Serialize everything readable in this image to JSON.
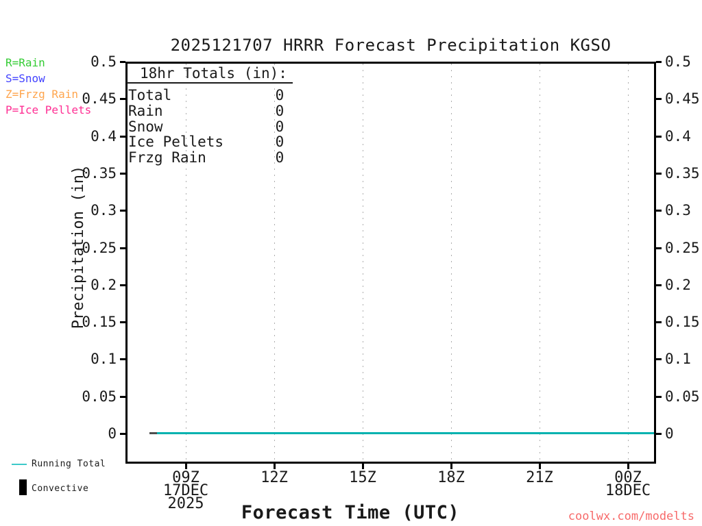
{
  "title": "2025121707 HRRR Forecast Precipitation KGSO",
  "precip_type_legend": {
    "items": [
      {
        "code": "R=Rain",
        "color": "#33cc33"
      },
      {
        "code": "S=Snow",
        "color": "#4343ff"
      },
      {
        "code": "Z=Frzg Rain",
        "color": "#ffa54d"
      },
      {
        "code": "P=Ice Pellets",
        "color": "#ff2e93"
      }
    ]
  },
  "totals_box": {
    "heading": "18hr Totals (in):",
    "rows": [
      {
        "label": "Total",
        "value": "0"
      },
      {
        "label": "Rain",
        "value": "0"
      },
      {
        "label": "Snow",
        "value": "0"
      },
      {
        "label": "Ice Pellets",
        "value": "0"
      },
      {
        "label": "Frzg Rain",
        "value": "0"
      }
    ]
  },
  "y_axis": {
    "label": "Precipitation (in)",
    "ticks": [
      "0.5",
      "0.45",
      "0.4",
      "0.35",
      "0.3",
      "0.25",
      "0.2",
      "0.15",
      "0.1",
      "0.05",
      "0"
    ]
  },
  "x_axis": {
    "label": "Forecast Time (UTC)",
    "ticks": [
      "09Z",
      "12Z",
      "15Z",
      "18Z",
      "21Z",
      "00Z"
    ],
    "start_date_line1": "17DEC",
    "start_date_line2": "2025",
    "end_date": "18DEC"
  },
  "series_legend": {
    "running_total": "Running Total",
    "convective": "Convective"
  },
  "footer": {
    "text": "coolwx.com/modelts",
    "color": "#f76a6a"
  },
  "line_colors": {
    "running_total": "#00b2af",
    "running_total_start": "#4d4d4d",
    "convective": "#000000"
  },
  "chart_data": {
    "type": "line",
    "title": "2025121707 HRRR Forecast Precipitation KGSO",
    "xlabel": "Forecast Time (UTC)",
    "ylabel": "Precipitation (in)",
    "ylim": [
      0,
      0.5
    ],
    "ytick_step": 0.05,
    "x_ticks": [
      "09Z",
      "12Z",
      "15Z",
      "18Z",
      "21Z",
      "00Z"
    ],
    "x_start": "07Z 17DEC 2025",
    "x_end": "01Z 18DEC 2025",
    "grid": "vertical dotted lines at 3-hour ticks",
    "legend_position": "bottom-left",
    "series": [
      {
        "name": "Running Total",
        "color": "#00b2af",
        "x": [
          "08Z",
          "09Z",
          "10Z",
          "11Z",
          "12Z",
          "13Z",
          "14Z",
          "15Z",
          "16Z",
          "17Z",
          "18Z",
          "19Z",
          "20Z",
          "21Z",
          "22Z",
          "23Z",
          "00Z",
          "01Z"
        ],
        "values": [
          0,
          0,
          0,
          0,
          0,
          0,
          0,
          0,
          0,
          0,
          0,
          0,
          0,
          0,
          0,
          0,
          0,
          0
        ]
      },
      {
        "name": "Convective",
        "color": "#000000",
        "values": []
      }
    ],
    "totals_18hr_in": {
      "total": 0,
      "rain": 0,
      "snow": 0,
      "ice_pellets": 0,
      "frzg_rain": 0
    }
  }
}
